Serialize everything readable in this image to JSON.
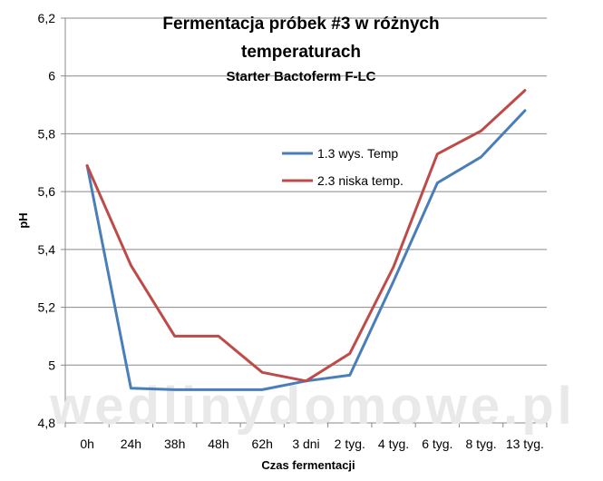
{
  "chart_data": {
    "type": "line",
    "title": "Fermentacja próbek #3 w różnych temperaturach",
    "title_lines": [
      "Fermentacja próbek #3 w różnych",
      "temperaturach"
    ],
    "subtitle": "Starter Bactoferm F-LC",
    "xlabel": "Czas fermentacji",
    "ylabel": "pH",
    "categories": [
      "0h",
      "24h",
      "38h",
      "48h",
      "62h",
      "3 dni",
      "2 tyg.",
      "4 tyg.",
      "6 tyg.",
      "8 tyg.",
      "13 tyg."
    ],
    "ylim": [
      4.8,
      6.2
    ],
    "yticks": [
      "4,8",
      "5",
      "5,2",
      "5,4",
      "5,6",
      "5,8",
      "6",
      "6,2"
    ],
    "grid": true,
    "legend_position": "upper-center",
    "series": [
      {
        "name": "1.3 wys. Temp",
        "color": "#4a7ebb",
        "values": [
          5.69,
          4.92,
          4.915,
          4.915,
          4.915,
          4.945,
          4.965,
          5.29,
          5.63,
          5.72,
          5.88
        ]
      },
      {
        "name": "2.3 niska temp.",
        "color": "#be4b48",
        "values": [
          5.69,
          5.345,
          5.1,
          5.1,
          4.975,
          4.945,
          5.04,
          5.34,
          5.73,
          5.81,
          5.95
        ]
      }
    ]
  },
  "watermark": "wedlinydomowe.pl"
}
